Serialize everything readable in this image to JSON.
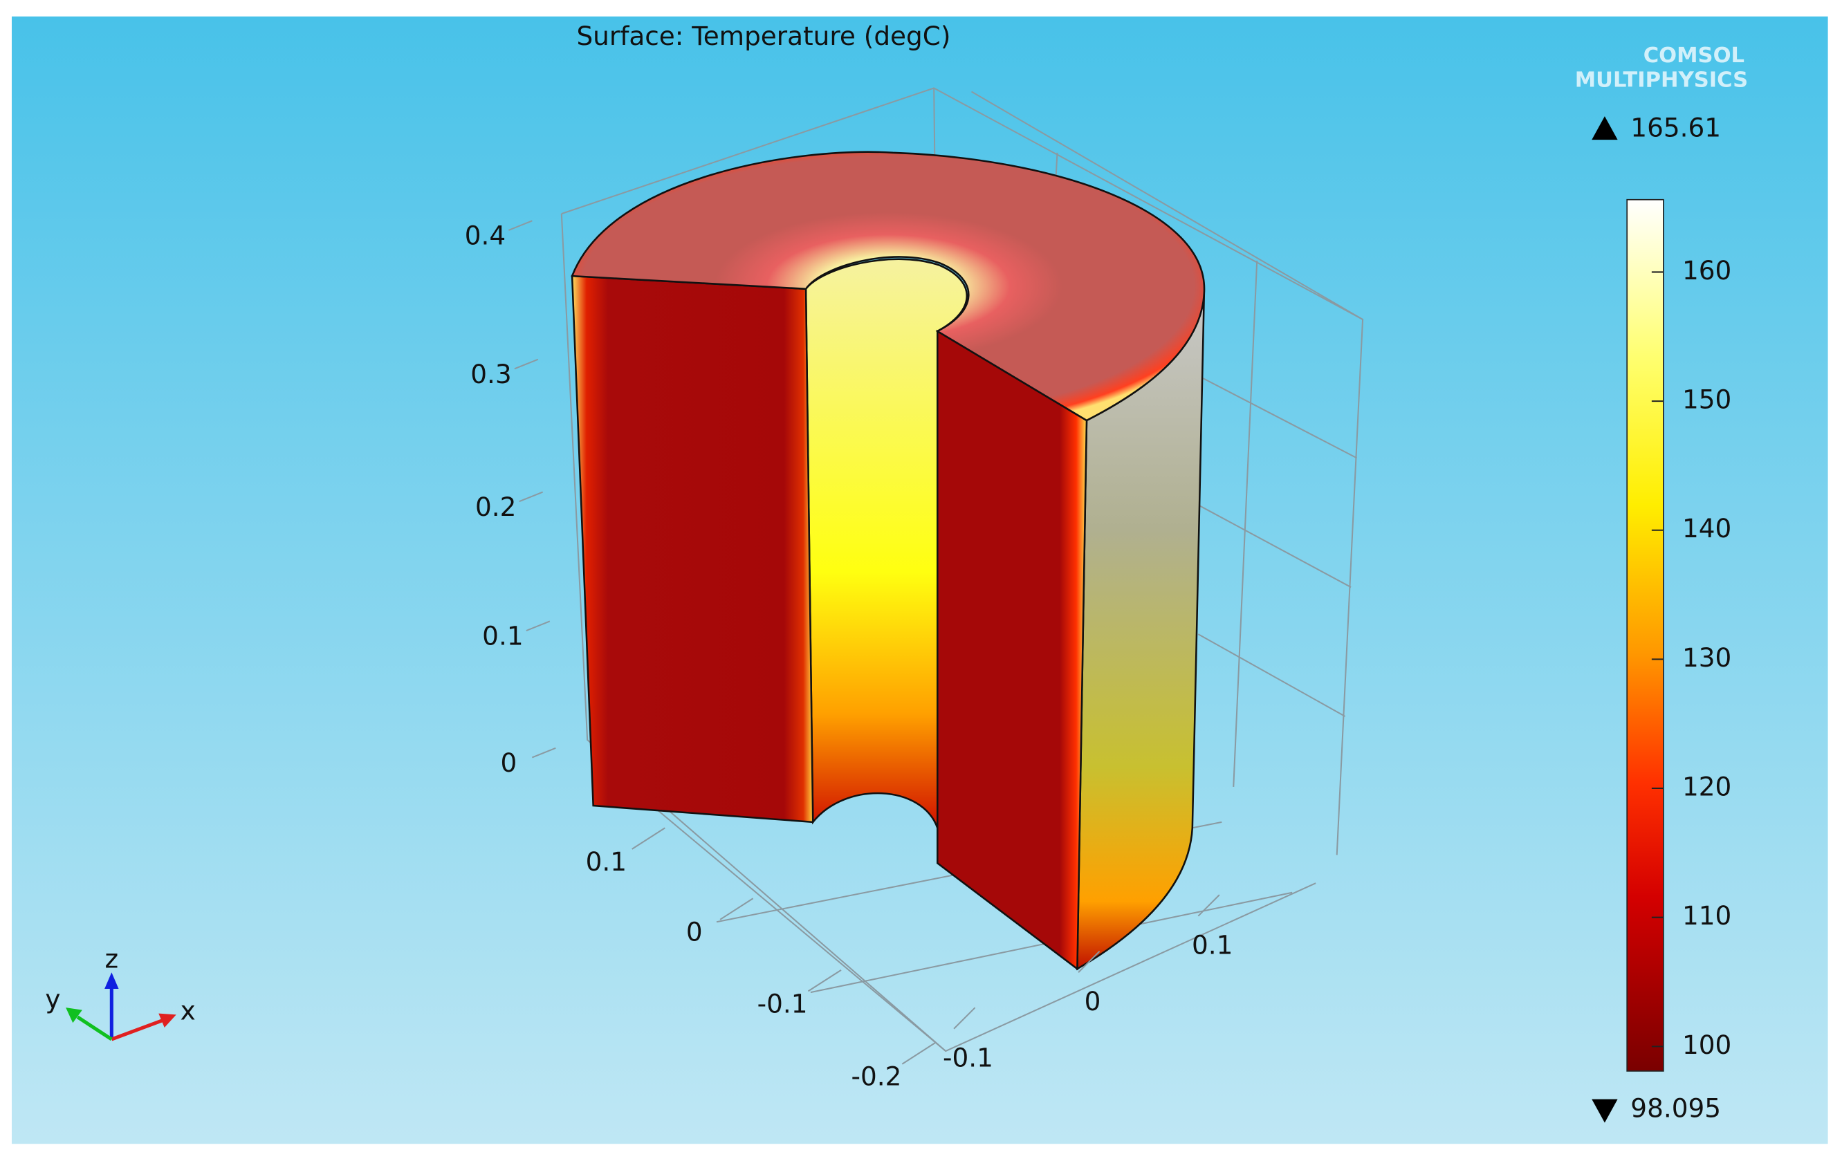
{
  "chart_data": {
    "type": "surface3d",
    "title": "Surface: Temperature (degC)",
    "logo": [
      "COMSOL",
      "MULTIPHYSICS"
    ],
    "zticks": [
      0,
      0.1,
      0.2,
      0.3,
      0.4
    ],
    "yticks": [
      0.1,
      0,
      -0.1,
      -0.2
    ],
    "xticks": [
      -0.1,
      0,
      0.1
    ],
    "triad": [
      "x",
      "y",
      "z"
    ],
    "colorbar": {
      "lim": [
        98.095,
        165.61
      ],
      "ticks": [
        100,
        110,
        120,
        130,
        140,
        150,
        160
      ]
    }
  }
}
